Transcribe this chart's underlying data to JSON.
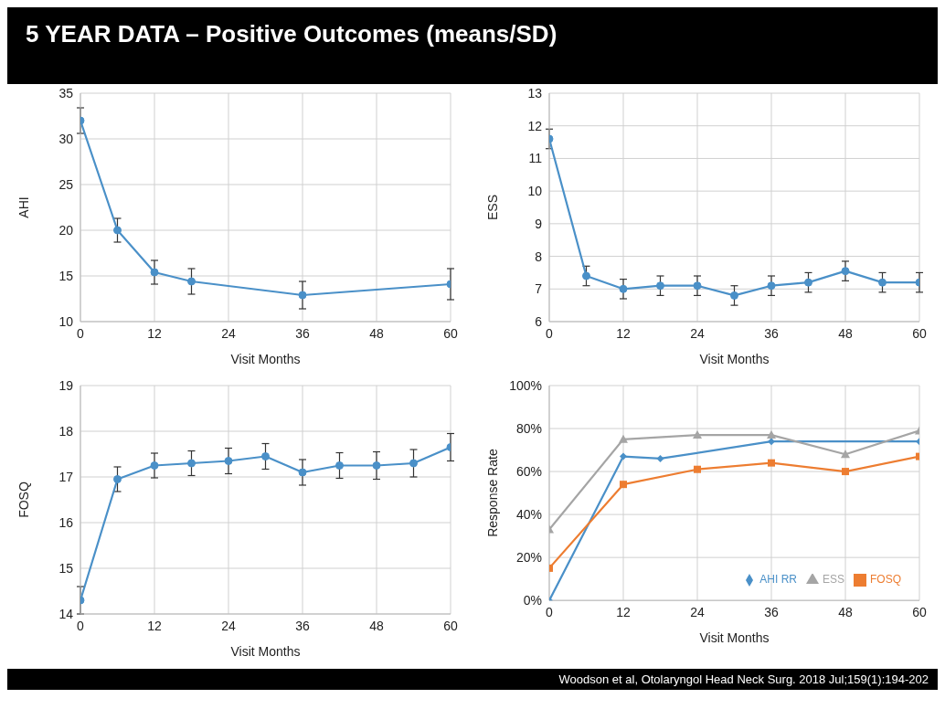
{
  "chart_data": [
    {
      "type": "line",
      "title": "5 YEAR DATA – Positive Outcomes (means/SD)",
      "xlabel": "Visit Months",
      "ylabel": "AHI",
      "x": [
        0,
        6,
        12,
        18,
        36,
        60
      ],
      "marker": "circle",
      "grid": true,
      "xlim": [
        0,
        60
      ],
      "xticks": [
        0,
        12,
        24,
        36,
        48,
        60
      ],
      "ylim": [
        10,
        35
      ],
      "yticks": [
        10,
        15,
        20,
        25,
        30,
        35
      ],
      "series": [
        {
          "color": "#4a90c8",
          "values": [
            32,
            20,
            15.4,
            14.4,
            12.9,
            14.1
          ],
          "errors": [
            1.4,
            1.3,
            1.3,
            1.4,
            1.5,
            1.7
          ]
        }
      ]
    },
    {
      "type": "line",
      "xlabel": "Visit Months",
      "ylabel": "ESS",
      "x": [
        0,
        6,
        12,
        18,
        24,
        30,
        36,
        42,
        48,
        54,
        60
      ],
      "marker": "circle",
      "grid": true,
      "xlim": [
        0,
        60
      ],
      "xticks": [
        0,
        12,
        24,
        36,
        48,
        60
      ],
      "ylim": [
        6,
        13
      ],
      "yticks": [
        6,
        7,
        8,
        9,
        10,
        11,
        12,
        13
      ],
      "series": [
        {
          "color": "#4a90c8",
          "values": [
            11.6,
            7.4,
            7.0,
            7.1,
            7.1,
            6.8,
            7.1,
            7.2,
            7.55,
            7.2,
            7.2
          ],
          "errors": [
            0.3,
            0.3,
            0.3,
            0.3,
            0.3,
            0.3,
            0.3,
            0.3,
            0.3,
            0.3,
            0.3
          ]
        }
      ]
    },
    {
      "type": "line",
      "xlabel": "Visit Months",
      "ylabel": "FOSQ",
      "x": [
        0,
        6,
        12,
        18,
        24,
        30,
        36,
        42,
        48,
        54,
        60
      ],
      "marker": "circle",
      "grid": true,
      "xlim": [
        0,
        60
      ],
      "xticks": [
        0,
        12,
        24,
        36,
        48,
        60
      ],
      "ylim": [
        14,
        19
      ],
      "yticks": [
        14,
        15,
        16,
        17,
        18,
        19
      ],
      "series": [
        {
          "color": "#4a90c8",
          "values": [
            14.3,
            16.95,
            17.25,
            17.3,
            17.35,
            17.45,
            17.1,
            17.25,
            17.25,
            17.3,
            17.65
          ],
          "errors": [
            0.3,
            0.27,
            0.27,
            0.27,
            0.28,
            0.28,
            0.28,
            0.28,
            0.3,
            0.3,
            0.3
          ]
        }
      ]
    },
    {
      "type": "line",
      "xlabel": "Visit Months",
      "ylabel": "Response Rate",
      "grid": true,
      "legend": "bottom right",
      "xlim": [
        0,
        60
      ],
      "xticks": [
        0,
        12,
        24,
        36,
        48,
        60
      ],
      "ylim": [
        0,
        100
      ],
      "yticks": [
        {
          "value": 0,
          "label": "0%"
        },
        {
          "value": 20,
          "label": "20%"
        },
        {
          "value": 40,
          "label": "40%"
        },
        {
          "value": 60,
          "label": "60%"
        },
        {
          "value": 80,
          "label": "80%"
        },
        {
          "value": 100,
          "label": "100%"
        }
      ],
      "annotations": [
        "Woodson et al, Otolaryngol Head Neck Surg. 2018 Jul;159(1):194-202"
      ],
      "series": [
        {
          "name": "AHI RR",
          "color": "#4a90c8",
          "marker": "diamond",
          "x": [
            0,
            12,
            18,
            36,
            60
          ],
          "values": [
            0,
            67,
            66,
            74,
            74
          ]
        },
        {
          "name": "FOSQ",
          "color": "#ed7d31",
          "marker": "square",
          "x": [
            0,
            12,
            24,
            36,
            48,
            60
          ],
          "values": [
            15,
            54,
            61,
            64,
            60,
            67
          ]
        },
        {
          "name": "ESS",
          "color": "#a5a5a5",
          "marker": "triangle",
          "x": [
            0,
            12,
            24,
            36,
            48,
            60
          ],
          "values": [
            33,
            75,
            77,
            77,
            68,
            79
          ]
        }
      ]
    }
  ]
}
